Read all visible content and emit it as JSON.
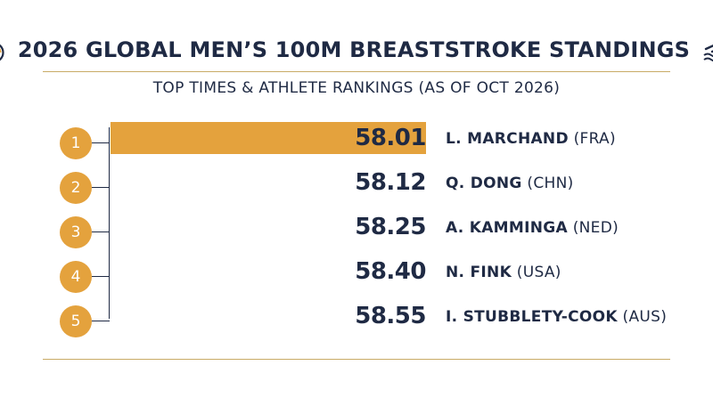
{
  "title": "2026 GLOBAL MEN’S 100M BREASTSTROKE STANDINGS",
  "subtitle": "TOP TIMES & ATHLETE RANKINGS (AS OF OCT 2026)",
  "icons": {
    "left": "stopwatch-icon",
    "right": "swimmer-icon"
  },
  "colors": {
    "accent": "#e4a23d",
    "text": "#1f2a44",
    "rule": "#c9ab66"
  },
  "chart_data": {
    "type": "bar",
    "orientation": "horizontal",
    "highlighted_rank": 1,
    "categories": [
      "1",
      "2",
      "3",
      "4",
      "5"
    ],
    "values": [
      58.01,
      58.12,
      58.25,
      58.4,
      58.55
    ],
    "value_labels": [
      "58.01",
      "58.12",
      "58.25",
      "58.40",
      "58.55"
    ],
    "athletes": [
      {
        "rank": "1",
        "name": "L. MARCHAND",
        "country": "(FRA)"
      },
      {
        "rank": "2",
        "name": "Q. DONG",
        "country": "(CHN)"
      },
      {
        "rank": "3",
        "name": "A. KAMMINGA",
        "country": "(NED)"
      },
      {
        "rank": "4",
        "name": "N. FINK",
        "country": "(USA)"
      },
      {
        "rank": "5",
        "name": "I. STUBBLETY-COOK",
        "country": "(AUS)"
      }
    ]
  }
}
